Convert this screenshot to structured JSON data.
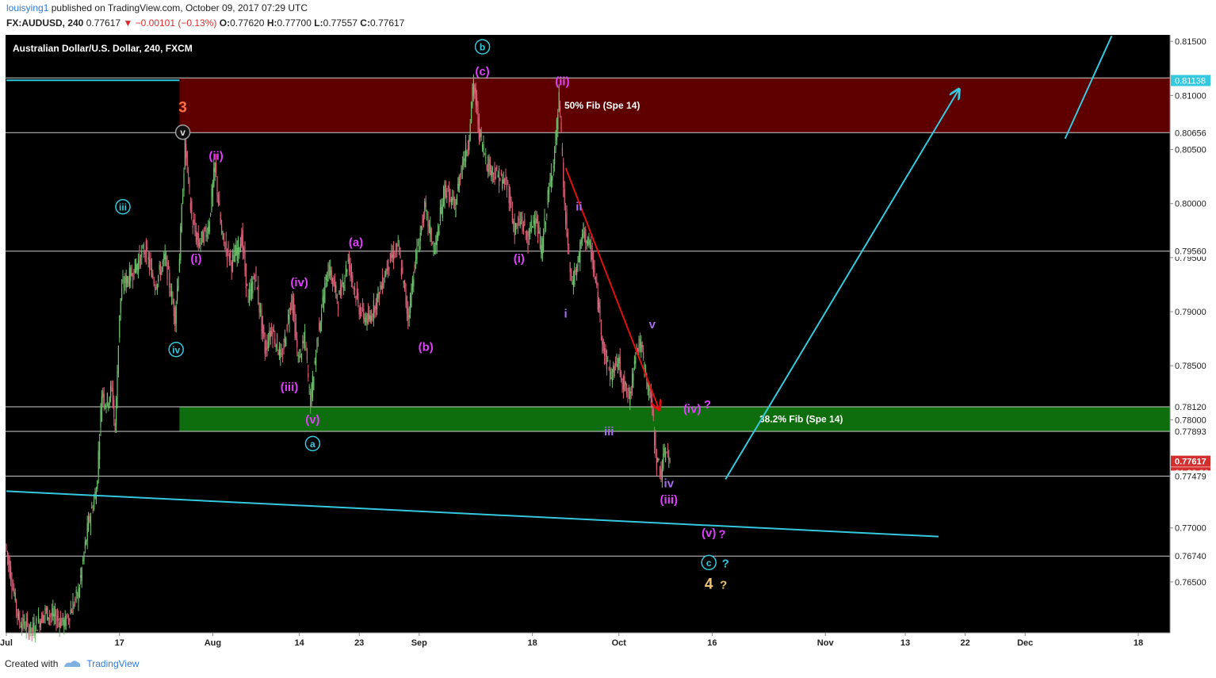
{
  "header": {
    "user": "louisying1",
    "published": "published on TradingView.com, October 09, 2017 07:29 UTC",
    "symbol": "FX:AUDUSD, 240",
    "last": "0.77617",
    "change": "▼ −0.00101 (−0.13%)",
    "o_label": "O:",
    "o": "0.77620",
    "h_label": "H:",
    "h": "0.77700",
    "l_label": "L:",
    "l": "0.77557",
    "c_label": "C:",
    "c": "0.77617"
  },
  "chart_title": "Australian Dollar/U.S. Dollar, 240, FXCM",
  "footer": {
    "created": "Created with",
    "brand": "TradingView"
  },
  "colors": {
    "up": "#6ec46e",
    "down": "#e0617a",
    "cyan": "#35c9e0",
    "magenta": "#e040fb",
    "purple": "#a76cf0",
    "orange": "#ff7043",
    "gold": "#f0c070",
    "zone_red": "#5e0000",
    "zone_green": "#0e6e0e",
    "last_price_bg": "#d32f2f"
  },
  "chart_data": {
    "type": "candlestick",
    "symbol": "AUDUSD",
    "timeframe": "240",
    "ylim": [
      0.7603,
      0.8156
    ],
    "price_ticks": [
      "0.81500",
      "0.81000",
      "0.80500",
      "0.80000",
      "0.79500",
      "0.79000",
      "0.78500",
      "0.78000",
      "0.77500",
      "0.77000",
      "0.76500"
    ],
    "price_tick_values": [
      0.815,
      0.81,
      0.805,
      0.8,
      0.795,
      0.79,
      0.785,
      0.78,
      0.775,
      0.77,
      0.765
    ],
    "price_labels": [
      {
        "text": "0.81162",
        "value": 0.81162,
        "kind": "line"
      },
      {
        "text": "0.81138",
        "value": 0.81138,
        "kind": "highlight"
      },
      {
        "text": "0.80656",
        "value": 0.80656,
        "kind": "line"
      },
      {
        "text": "0.79560",
        "value": 0.7956,
        "kind": "line"
      },
      {
        "text": "0.78120",
        "value": 0.7812,
        "kind": "line"
      },
      {
        "text": "0.77893",
        "value": 0.77893,
        "kind": "line"
      },
      {
        "text": "0.77617",
        "value": 0.77617,
        "kind": "last"
      },
      {
        "text": "01:30:20",
        "value": 0.7751,
        "kind": "countdown"
      },
      {
        "text": "0.77479",
        "value": 0.77479,
        "kind": "line"
      },
      {
        "text": "0.76740",
        "value": 0.7674,
        "kind": "line"
      }
    ],
    "time_ticks": [
      {
        "label": "Jul",
        "day": 0
      },
      {
        "label": "17",
        "day": 17
      },
      {
        "label": "Aug",
        "day": 31
      },
      {
        "label": "14",
        "day": 44
      },
      {
        "label": "23",
        "day": 53
      },
      {
        "label": "Sep",
        "day": 62
      },
      {
        "label": "18",
        "day": 79
      },
      {
        "label": "Oct",
        "day": 92
      },
      {
        "label": "16",
        "day": 106
      },
      {
        "label": "Nov",
        "day": 123
      },
      {
        "label": "13",
        "day": 135
      },
      {
        "label": "22",
        "day": 144
      },
      {
        "label": "Dec",
        "day": 153
      },
      {
        "label": "18",
        "day": 170
      }
    ],
    "zones": [
      {
        "label": "50% Fib (Spe 14)",
        "top": 0.81162,
        "bottom": 0.80656,
        "start_day": 26,
        "color": "zone_red"
      },
      {
        "label": "38.2% Fib (Spe 14)",
        "top": 0.7812,
        "bottom": 0.77893,
        "start_day": 26,
        "color": "zone_green"
      }
    ],
    "horizontal_lines": [
      0.81162,
      0.80656,
      0.7956,
      0.7812,
      0.77893,
      0.77479,
      0.7674
    ],
    "price_path": [
      {
        "day": 0,
        "price": 0.7685
      },
      {
        "day": 2,
        "price": 0.7615
      },
      {
        "day": 4,
        "price": 0.7605
      },
      {
        "day": 6,
        "price": 0.7622
      },
      {
        "day": 9,
        "price": 0.7612
      },
      {
        "day": 11,
        "price": 0.764
      },
      {
        "day": 12.5,
        "price": 0.7705
      },
      {
        "day": 13.7,
        "price": 0.7735
      },
      {
        "day": 14.5,
        "price": 0.7825
      },
      {
        "day": 15.2,
        "price": 0.7815
      },
      {
        "day": 16,
        "price": 0.783
      },
      {
        "day": 16.5,
        "price": 0.779
      },
      {
        "day": 17.2,
        "price": 0.7905
      },
      {
        "day": 17.6,
        "price": 0.7925
      },
      {
        "day": 19,
        "price": 0.7935
      },
      {
        "day": 21,
        "price": 0.7958
      },
      {
        "day": 22.5,
        "price": 0.7925
      },
      {
        "day": 24,
        "price": 0.795
      },
      {
        "day": 25.5,
        "price": 0.7895
      },
      {
        "day": 26.2,
        "price": 0.7955
      },
      {
        "day": 27,
        "price": 0.8055
      },
      {
        "day": 28,
        "price": 0.7985
      },
      {
        "day": 29,
        "price": 0.7962
      },
      {
        "day": 30.5,
        "price": 0.7978
      },
      {
        "day": 31.5,
        "price": 0.8035
      },
      {
        "day": 32.5,
        "price": 0.797
      },
      {
        "day": 34,
        "price": 0.7945
      },
      {
        "day": 35.5,
        "price": 0.7968
      },
      {
        "day": 36.5,
        "price": 0.791
      },
      {
        "day": 37.5,
        "price": 0.7935
      },
      {
        "day": 39,
        "price": 0.7865
      },
      {
        "day": 40,
        "price": 0.7885
      },
      {
        "day": 41.5,
        "price": 0.7855
      },
      {
        "day": 43,
        "price": 0.7915
      },
      {
        "day": 44,
        "price": 0.7855
      },
      {
        "day": 45,
        "price": 0.7875
      },
      {
        "day": 45.8,
        "price": 0.7815
      },
      {
        "day": 47,
        "price": 0.7882
      },
      {
        "day": 48.5,
        "price": 0.7942
      },
      {
        "day": 50,
        "price": 0.791
      },
      {
        "day": 51.5,
        "price": 0.7948
      },
      {
        "day": 53,
        "price": 0.7905
      },
      {
        "day": 54.5,
        "price": 0.789
      },
      {
        "day": 56,
        "price": 0.7915
      },
      {
        "day": 57.5,
        "price": 0.7945
      },
      {
        "day": 59,
        "price": 0.796
      },
      {
        "day": 60.5,
        "price": 0.7895
      },
      {
        "day": 61.5,
        "price": 0.7945
      },
      {
        "day": 63,
        "price": 0.7995
      },
      {
        "day": 64.5,
        "price": 0.7955
      },
      {
        "day": 66,
        "price": 0.8015
      },
      {
        "day": 67.5,
        "price": 0.7995
      },
      {
        "day": 68.5,
        "price": 0.8035
      },
      {
        "day": 69.5,
        "price": 0.8055
      },
      {
        "day": 70.3,
        "price": 0.8112
      },
      {
        "day": 71.2,
        "price": 0.8065
      },
      {
        "day": 72.5,
        "price": 0.8035
      },
      {
        "day": 74,
        "price": 0.8025
      },
      {
        "day": 75.5,
        "price": 0.8015
      },
      {
        "day": 76.5,
        "price": 0.7975
      },
      {
        "day": 77.5,
        "price": 0.7985
      },
      {
        "day": 78.5,
        "price": 0.7965
      },
      {
        "day": 79.5,
        "price": 0.7992
      },
      {
        "day": 80.5,
        "price": 0.7955
      },
      {
        "day": 81.5,
        "price": 0.8005
      },
      {
        "day": 82.5,
        "price": 0.8048
      },
      {
        "day": 83.2,
        "price": 0.8098
      },
      {
        "day": 84,
        "price": 0.7995
      },
      {
        "day": 85,
        "price": 0.7925
      },
      {
        "day": 86,
        "price": 0.7945
      },
      {
        "day": 86.8,
        "price": 0.7975
      },
      {
        "day": 88,
        "price": 0.7955
      },
      {
        "day": 89,
        "price": 0.791
      },
      {
        "day": 90,
        "price": 0.786
      },
      {
        "day": 91,
        "price": 0.784
      },
      {
        "day": 92,
        "price": 0.7855
      },
      {
        "day": 93,
        "price": 0.783
      },
      {
        "day": 93.8,
        "price": 0.7818
      },
      {
        "day": 94.6,
        "price": 0.7865
      },
      {
        "day": 95.4,
        "price": 0.787
      },
      {
        "day": 96.2,
        "price": 0.784
      },
      {
        "day": 97,
        "price": 0.7818
      },
      {
        "day": 97.8,
        "price": 0.7762
      },
      {
        "day": 98.5,
        "price": 0.7752
      },
      {
        "day": 99.3,
        "price": 0.7775
      },
      {
        "day": 99.8,
        "price": 0.7762
      }
    ],
    "trendlines": [
      {
        "name": "cyan-top-left",
        "from": {
          "day": 0,
          "price": 0.8114
        },
        "to": {
          "day": 26,
          "price": 0.8114
        },
        "color": "cyan"
      },
      {
        "name": "cyan-support",
        "from": {
          "day": 0,
          "price": 0.7734
        },
        "to": {
          "day": 140,
          "price": 0.7692
        },
        "color": "cyan"
      },
      {
        "name": "red-impulse",
        "from": {
          "day": 84,
          "price": 0.8033
        },
        "to": {
          "day": 98,
          "price": 0.781
        },
        "color": "red",
        "arrow": true
      },
      {
        "name": "cyan-projection",
        "from": {
          "day": 108,
          "price": 0.7745
        },
        "to": {
          "day": 143,
          "price": 0.8105
        },
        "color": "cyan",
        "arrow": true
      },
      {
        "name": "cyan-projection-top",
        "from": {
          "day": 159,
          "price": 0.806
        },
        "to": {
          "day": 166,
          "price": 0.8155
        },
        "color": "cyan"
      }
    ],
    "wave_labels": [
      {
        "text": "b",
        "style": "circle",
        "color": "cyan",
        "day": 71.5,
        "price": 0.8145
      },
      {
        "text": "(c)",
        "style": "plain",
        "color": "magenta",
        "day": 71.5,
        "price": 0.8123
      },
      {
        "text": "(ii)",
        "style": "plain",
        "color": "magenta",
        "day": 83.5,
        "price": 0.8114
      },
      {
        "text": "3",
        "style": "big",
        "color": "orange",
        "day": 26.5,
        "price": 0.8089
      },
      {
        "text": "v",
        "style": "circle-grey",
        "color": "grey",
        "day": 26.5,
        "price": 0.8066
      },
      {
        "text": "(ii)",
        "style": "plain",
        "color": "magenta",
        "day": 31.5,
        "price": 0.8045
      },
      {
        "text": "iii",
        "style": "circle",
        "color": "cyan",
        "day": 17.5,
        "price": 0.7997
      },
      {
        "text": "(i)",
        "style": "plain",
        "color": "magenta",
        "day": 28.5,
        "price": 0.795
      },
      {
        "text": "iv",
        "style": "circle",
        "color": "cyan",
        "day": 25.5,
        "price": 0.7865
      },
      {
        "text": "(iv)",
        "style": "plain",
        "color": "magenta",
        "day": 44,
        "price": 0.7928
      },
      {
        "text": "(a)",
        "style": "plain",
        "color": "magenta",
        "day": 52.5,
        "price": 0.7965
      },
      {
        "text": "(iii)",
        "style": "plain",
        "color": "magenta",
        "day": 42.5,
        "price": 0.7831
      },
      {
        "text": "(b)",
        "style": "plain",
        "color": "magenta",
        "day": 63,
        "price": 0.7868
      },
      {
        "text": "(v)",
        "style": "plain",
        "color": "magenta",
        "day": 46,
        "price": 0.7801
      },
      {
        "text": "a",
        "style": "circle",
        "color": "cyan",
        "day": 46,
        "price": 0.7778
      },
      {
        "text": "(i)",
        "style": "plain",
        "color": "magenta",
        "day": 77,
        "price": 0.795
      },
      {
        "text": "ii",
        "style": "plain",
        "color": "purple",
        "day": 86,
        "price": 0.7998
      },
      {
        "text": "i",
        "style": "plain",
        "color": "purple",
        "day": 84,
        "price": 0.7899
      },
      {
        "text": "v",
        "style": "plain",
        "color": "purple",
        "day": 97,
        "price": 0.7889
      },
      {
        "text": "iii",
        "style": "plain",
        "color": "purple",
        "day": 90.5,
        "price": 0.779
      },
      {
        "text": "(iv)",
        "style": "plain",
        "color": "magenta",
        "day": 103,
        "price": 0.7811
      },
      {
        "text": "?",
        "style": "plain",
        "color": "magenta",
        "day": 105.3,
        "price": 0.7815
      },
      {
        "text": "iv",
        "style": "plain",
        "color": "purple",
        "day": 99.5,
        "price": 0.7742
      },
      {
        "text": "(iii)",
        "style": "plain",
        "color": "magenta",
        "day": 99.5,
        "price": 0.7727
      },
      {
        "text": "(v)",
        "style": "plain",
        "color": "magenta",
        "day": 105.5,
        "price": 0.7696
      },
      {
        "text": "?",
        "style": "plain",
        "color": "magenta",
        "day": 107.5,
        "price": 0.7695
      },
      {
        "text": "c",
        "style": "circle",
        "color": "cyan",
        "day": 105.5,
        "price": 0.7668
      },
      {
        "text": "?",
        "style": "plain",
        "color": "cyan",
        "day": 108,
        "price": 0.7668
      },
      {
        "text": "4",
        "style": "big",
        "color": "gold",
        "day": 105.5,
        "price": 0.7648
      },
      {
        "text": "?",
        "style": "plain",
        "color": "gold",
        "day": 107.7,
        "price": 0.7648
      }
    ],
    "last_price": 0.77617,
    "grid": false,
    "legend": "none"
  }
}
